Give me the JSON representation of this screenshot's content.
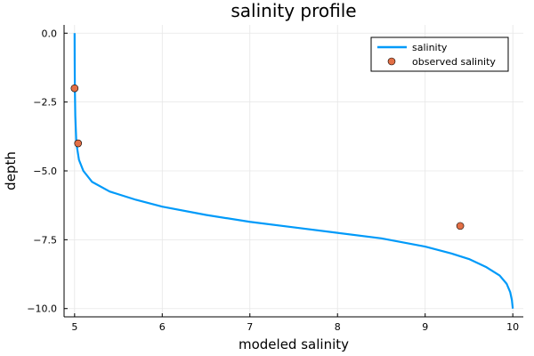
{
  "chart_data": {
    "type": "line",
    "title": "salinity profile",
    "xlabel": "modeled salinity",
    "ylabel": "depth",
    "xlim": [
      4.88,
      10.12
    ],
    "ylim": [
      -10.3,
      0.3
    ],
    "xticks": [
      5,
      6,
      7,
      8,
      9,
      10
    ],
    "xtick_labels": [
      "5",
      "6",
      "7",
      "8",
      "9",
      "10"
    ],
    "yticks": [
      0,
      -2.5,
      -5,
      -7.5,
      -10
    ],
    "ytick_labels": [
      "0.0",
      "−2.5",
      "−5.0",
      "−7.5",
      "−10.0"
    ],
    "grid": true,
    "legend_position": "top-right",
    "series": [
      {
        "name": "salinity",
        "kind": "line",
        "color": "#009af9",
        "x": [
          5.0,
          5.001,
          5.003,
          5.008,
          5.02,
          5.05,
          5.1,
          5.2,
          5.4,
          5.7,
          6.0,
          6.5,
          7.0,
          7.5,
          8.0,
          8.5,
          9.0,
          9.3,
          9.5,
          9.7,
          9.85,
          9.93,
          9.97,
          9.99,
          10.0
        ],
        "y": [
          0.0,
          -1.0,
          -2.0,
          -3.0,
          -4.0,
          -4.6,
          -5.0,
          -5.4,
          -5.75,
          -6.05,
          -6.3,
          -6.6,
          -6.85,
          -7.05,
          -7.25,
          -7.45,
          -7.75,
          -8.0,
          -8.2,
          -8.5,
          -8.8,
          -9.1,
          -9.4,
          -9.7,
          -10.0
        ]
      },
      {
        "name": "observed salinity",
        "kind": "scatter",
        "color": "#e26f46",
        "x": [
          5.0,
          5.04,
          9.4
        ],
        "y": [
          -2.0,
          -4.0,
          -7.0
        ]
      }
    ]
  }
}
